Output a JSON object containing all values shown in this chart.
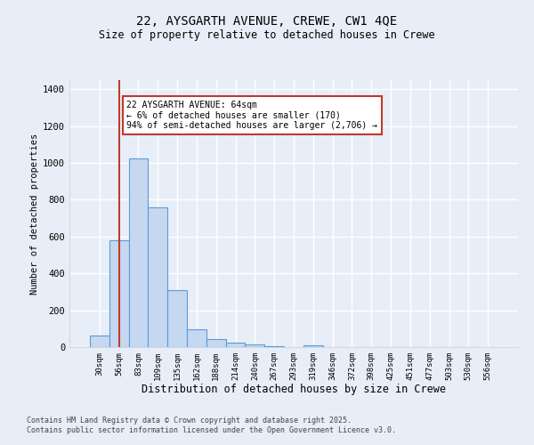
{
  "title_line1": "22, AYSGARTH AVENUE, CREWE, CW1 4QE",
  "title_line2": "Size of property relative to detached houses in Crewe",
  "xlabel": "Distribution of detached houses by size in Crewe",
  "ylabel": "Number of detached properties",
  "annotation_line1": "22 AYSGARTH AVENUE: 64sqm",
  "annotation_line2": "← 6% of detached houses are smaller (170)",
  "annotation_line3": "94% of semi-detached houses are larger (2,706) →",
  "bar_labels": [
    "30sqm",
    "56sqm",
    "83sqm",
    "109sqm",
    "135sqm",
    "162sqm",
    "188sqm",
    "214sqm",
    "240sqm",
    "267sqm",
    "293sqm",
    "319sqm",
    "346sqm",
    "372sqm",
    "398sqm",
    "425sqm",
    "451sqm",
    "477sqm",
    "503sqm",
    "530sqm",
    "556sqm"
  ],
  "bar_values": [
    65,
    580,
    1025,
    760,
    310,
    95,
    45,
    22,
    14,
    7,
    0,
    12,
    0,
    0,
    0,
    0,
    0,
    0,
    0,
    0,
    0
  ],
  "bar_color": "#c5d8f0",
  "bar_edge_color": "#5b9bd5",
  "vline_x": 1,
  "vline_color": "#c0392b",
  "ylim": [
    0,
    1450
  ],
  "yticks": [
    0,
    200,
    400,
    600,
    800,
    1000,
    1200,
    1400
  ],
  "background_color": "#e8eef8",
  "grid_color": "#ffffff",
  "footnote": "Contains HM Land Registry data © Crown copyright and database right 2025.\nContains public sector information licensed under the Open Government Licence v3.0."
}
